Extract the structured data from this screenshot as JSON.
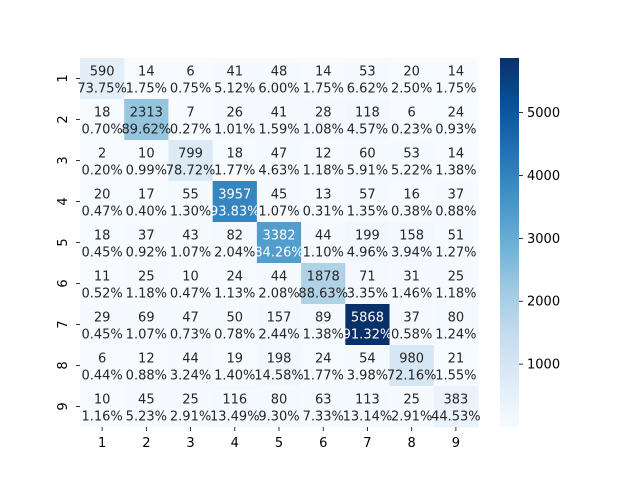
{
  "chart_data": {
    "type": "heatmap",
    "title": "",
    "xlabel": "",
    "ylabel": "",
    "x_labels": [
      "1",
      "2",
      "3",
      "4",
      "5",
      "6",
      "7",
      "8",
      "9"
    ],
    "y_labels": [
      "1",
      "2",
      "3",
      "4",
      "5",
      "6",
      "7",
      "8",
      "9"
    ],
    "colormap": "Blues",
    "colorbar": {
      "min": 0,
      "max": 5868,
      "ticks": [
        1000,
        2000,
        3000,
        4000,
        5000
      ]
    },
    "values": [
      [
        590,
        14,
        6,
        41,
        48,
        14,
        53,
        20,
        14
      ],
      [
        18,
        2313,
        7,
        26,
        41,
        28,
        118,
        6,
        24
      ],
      [
        2,
        10,
        799,
        18,
        47,
        12,
        60,
        53,
        14
      ],
      [
        20,
        17,
        55,
        3957,
        45,
        13,
        57,
        16,
        37
      ],
      [
        18,
        37,
        43,
        82,
        3382,
        44,
        199,
        158,
        51
      ],
      [
        11,
        25,
        10,
        24,
        44,
        1878,
        71,
        31,
        25
      ],
      [
        29,
        69,
        47,
        50,
        157,
        89,
        5868,
        37,
        80
      ],
      [
        6,
        12,
        44,
        19,
        198,
        24,
        54,
        980,
        21
      ],
      [
        10,
        45,
        25,
        116,
        80,
        63,
        113,
        25,
        383
      ]
    ],
    "percentages": [
      [
        "73.75%",
        "1.75%",
        "0.75%",
        "5.12%",
        "6.00%",
        "1.75%",
        "6.62%",
        "2.50%",
        "1.75%"
      ],
      [
        "0.70%",
        "89.62%",
        "0.27%",
        "1.01%",
        "1.59%",
        "1.08%",
        "4.57%",
        "0.23%",
        "0.93%"
      ],
      [
        "0.20%",
        "0.99%",
        "78.72%",
        "1.77%",
        "4.63%",
        "1.18%",
        "5.91%",
        "5.22%",
        "1.38%"
      ],
      [
        "0.47%",
        "0.40%",
        "1.30%",
        "93.83%",
        "1.07%",
        "0.31%",
        "1.35%",
        "0.38%",
        "0.88%"
      ],
      [
        "0.45%",
        "0.92%",
        "1.07%",
        "2.04%",
        "84.26%",
        "1.10%",
        "4.96%",
        "3.94%",
        "1.27%"
      ],
      [
        "0.52%",
        "1.18%",
        "0.47%",
        "1.13%",
        "2.08%",
        "88.63%",
        "3.35%",
        "1.46%",
        "1.18%"
      ],
      [
        "0.45%",
        "1.07%",
        "0.73%",
        "0.78%",
        "2.44%",
        "1.38%",
        "91.32%",
        "0.58%",
        "1.24%"
      ],
      [
        "0.44%",
        "0.88%",
        "3.24%",
        "1.40%",
        "14.58%",
        "1.77%",
        "3.98%",
        "72.16%",
        "1.55%"
      ],
      [
        "1.16%",
        "5.23%",
        "2.91%",
        "13.49%",
        "9.30%",
        "7.33%",
        "13.14%",
        "2.91%",
        "44.53%"
      ]
    ]
  }
}
